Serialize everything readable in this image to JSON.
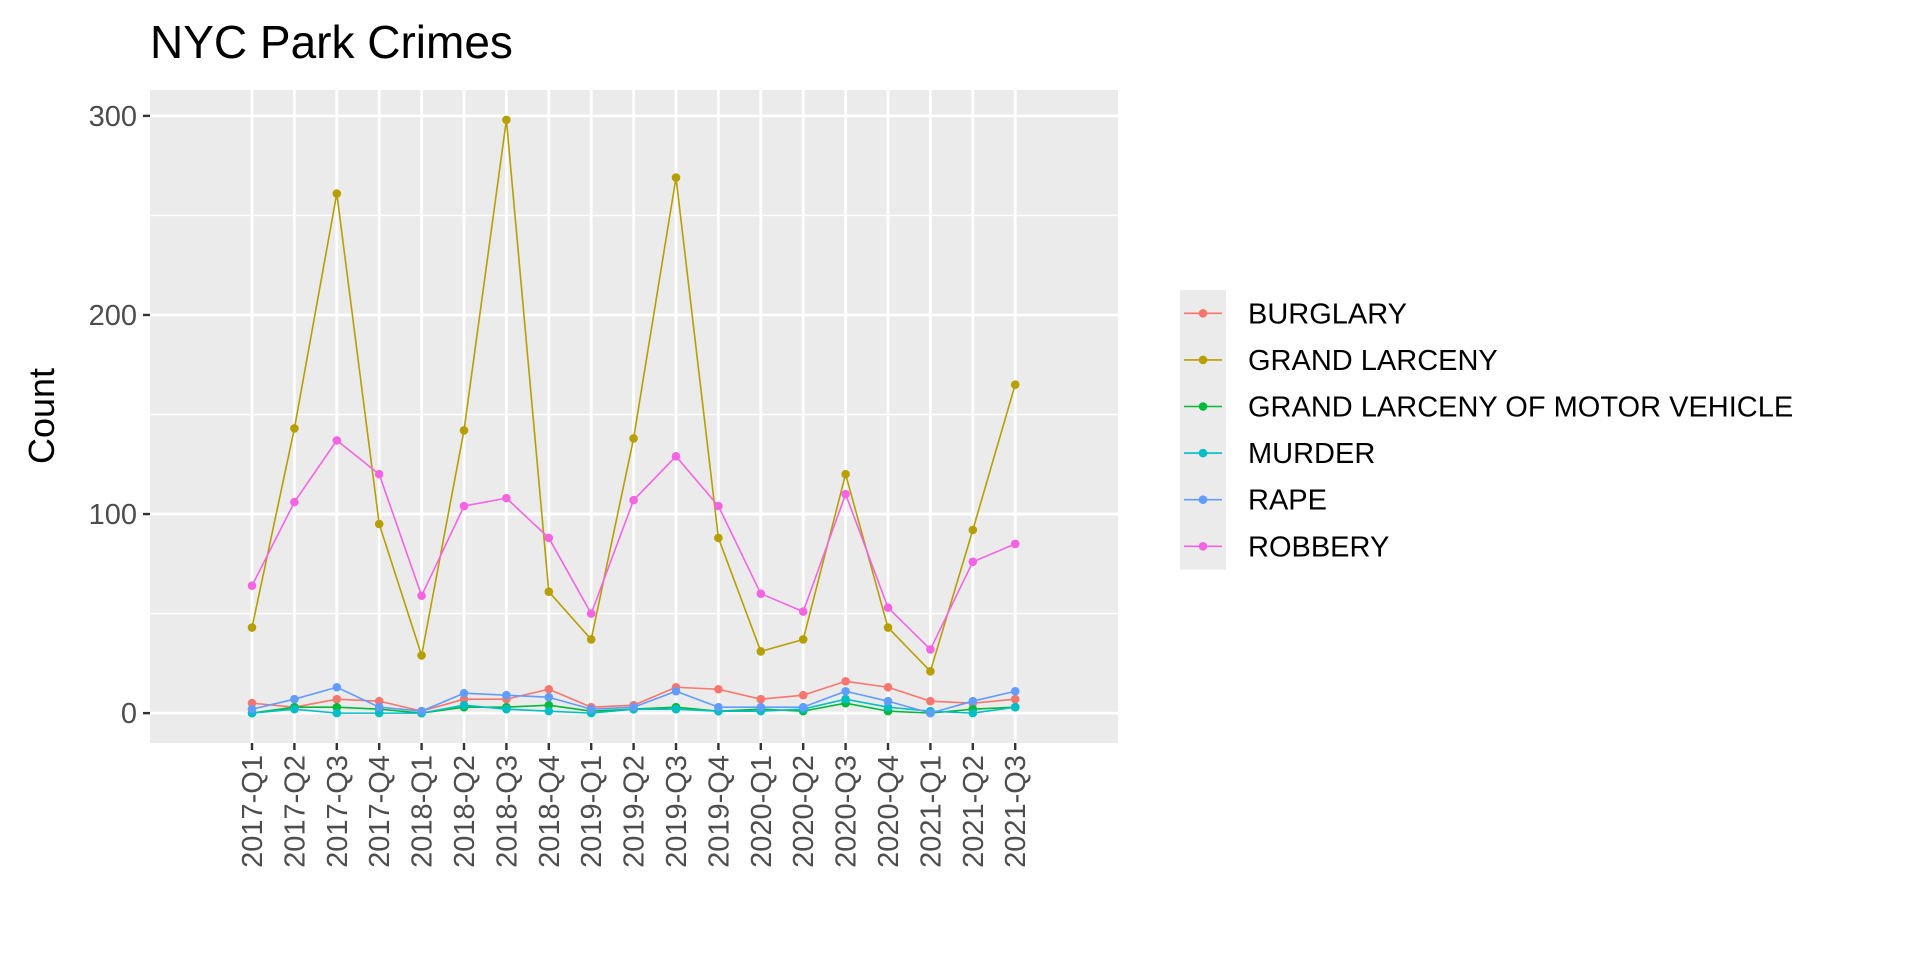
{
  "chart_data": {
    "type": "line",
    "title": "NYC Park Crimes",
    "xlabel": "",
    "ylabel": "Count",
    "ylim": [
      -15,
      313
    ],
    "yticks": [
      0,
      100,
      200,
      300
    ],
    "categories": [
      "2017-Q1",
      "2017-Q2",
      "2017-Q3",
      "2017-Q4",
      "2018-Q1",
      "2018-Q2",
      "2018-Q3",
      "2018-Q4",
      "2019-Q1",
      "2019-Q2",
      "2019-Q3",
      "2019-Q4",
      "2020-Q1",
      "2020-Q2",
      "2020-Q3",
      "2020-Q4",
      "2021-Q1",
      "2021-Q2",
      "2021-Q3"
    ],
    "grid": true,
    "legend_position": "right",
    "panel_background": "#EBEBEB",
    "series": [
      {
        "name": "BURGLARY",
        "color": "#F8766D",
        "values": [
          5,
          3,
          7,
          6,
          1,
          7,
          7,
          12,
          3,
          4,
          13,
          12,
          7,
          9,
          16,
          13,
          6,
          5,
          7
        ]
      },
      {
        "name": "GRAND LARCENY",
        "color": "#B79F00",
        "values": [
          43,
          143,
          261,
          95,
          29,
          142,
          298,
          61,
          37,
          138,
          269,
          88,
          31,
          37,
          120,
          43,
          21,
          92,
          165
        ]
      },
      {
        "name": "GRAND LARCENY OF MOTOR VEHICLE",
        "color": "#00BA38",
        "values": [
          0,
          3,
          3,
          2,
          0,
          3,
          3,
          4,
          1,
          2,
          3,
          1,
          2,
          1,
          5,
          1,
          0,
          2,
          3
        ]
      },
      {
        "name": "MURDER",
        "color": "#00BFC4",
        "values": [
          0,
          2,
          0,
          0,
          0,
          4,
          2,
          1,
          0,
          2,
          2,
          1,
          1,
          2,
          7,
          3,
          1,
          0,
          3
        ]
      },
      {
        "name": "RAPE",
        "color": "#619CFF",
        "values": [
          2,
          7,
          13,
          3,
          1,
          10,
          9,
          8,
          2,
          3,
          11,
          3,
          3,
          3,
          11,
          6,
          0,
          6,
          11
        ]
      },
      {
        "name": "ROBBERY",
        "color": "#F564E3",
        "values": [
          64,
          106,
          137,
          120,
          59,
          104,
          108,
          88,
          50,
          107,
          129,
          104,
          60,
          51,
          110,
          53,
          32,
          76,
          85
        ]
      }
    ]
  }
}
